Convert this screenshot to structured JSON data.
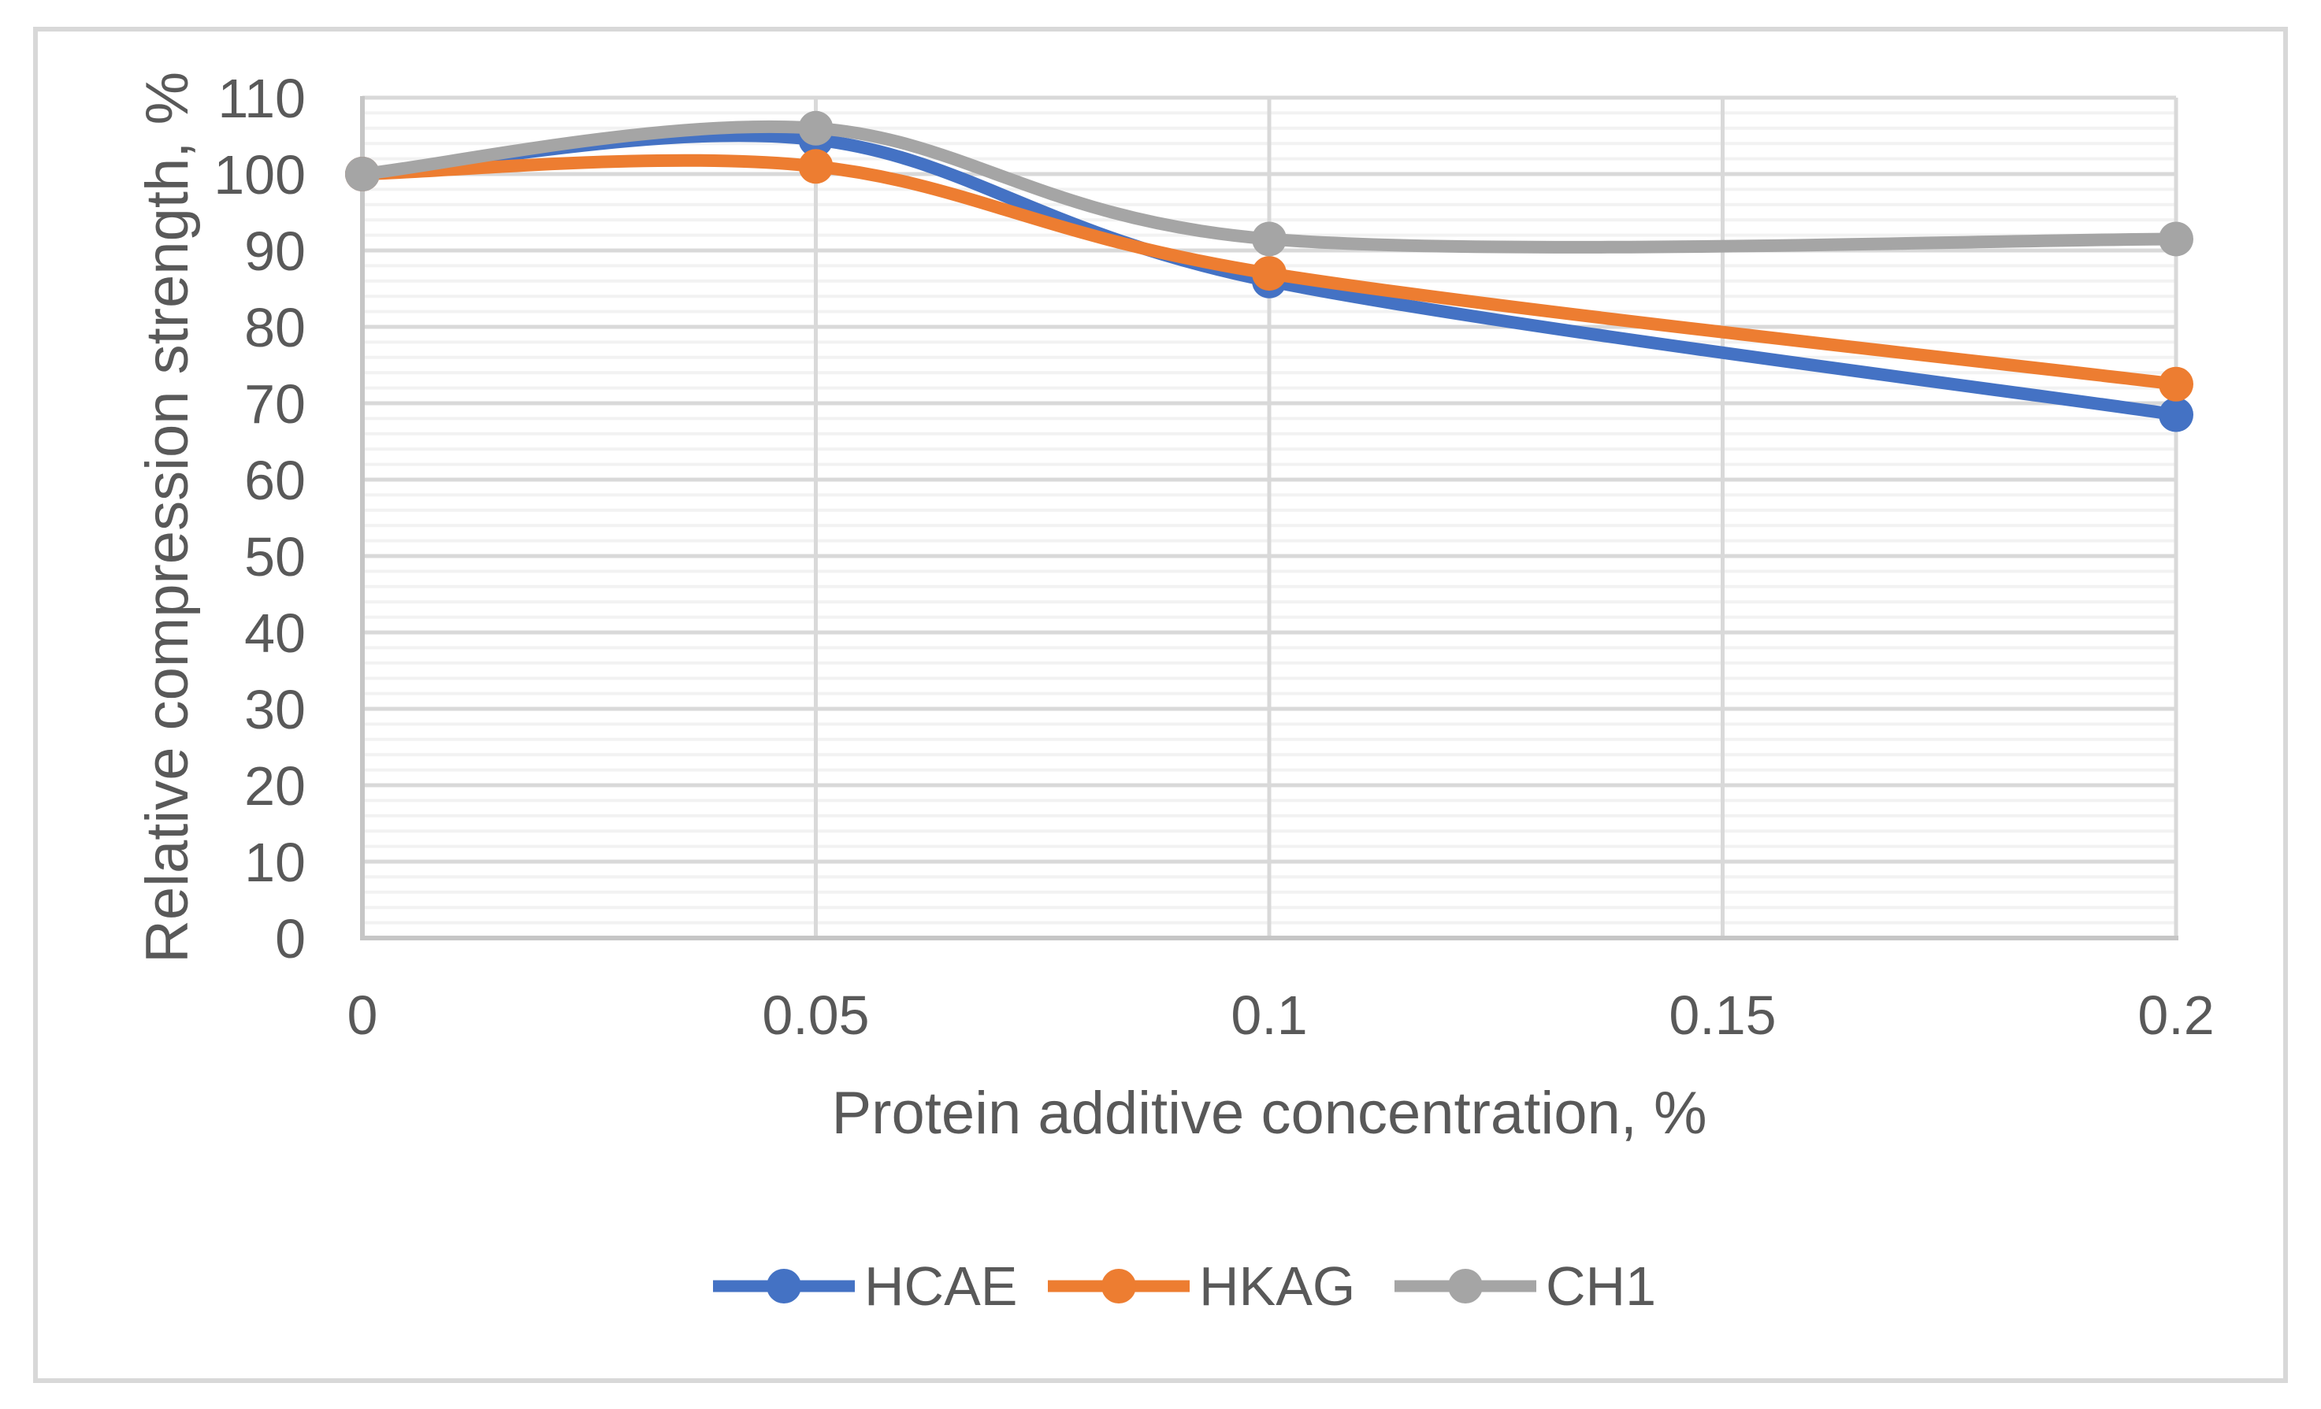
{
  "figure": {
    "background": "#ffffff",
    "border_color": "#d8d8d8"
  },
  "chart_data": {
    "type": "line",
    "title": "",
    "xlabel": "Protein additive concentration, %",
    "ylabel": "Relative compression strength, %",
    "x": [
      0,
      0.05,
      0.1,
      0.2
    ],
    "xlim": [
      0,
      0.2
    ],
    "ylim": [
      0,
      110
    ],
    "x_tick_values": [
      0,
      0.05,
      0.1,
      0.15,
      0.2
    ],
    "x_ticks": [
      "0",
      "0.05",
      "0.1",
      "0.15",
      "0.2"
    ],
    "y_tick_values": [
      0,
      10,
      20,
      30,
      40,
      50,
      60,
      70,
      80,
      90,
      100,
      110
    ],
    "y_ticks": [
      "0",
      "10",
      "20",
      "30",
      "40",
      "50",
      "60",
      "70",
      "80",
      "90",
      "100",
      "110"
    ],
    "y_minor_step": 2,
    "grid": "horizontal major+minor, vertical major",
    "smooth": true,
    "legend_position": "bottom",
    "series": [
      {
        "name": "HCAE",
        "color": "#4472C4",
        "values": [
          100,
          104.5,
          86,
          68.5
        ]
      },
      {
        "name": "HKAG",
        "color": "#ED7D31",
        "values": [
          100,
          101,
          87,
          72.5
        ]
      },
      {
        "name": "CH1",
        "color": "#A5A5A5",
        "values": [
          100,
          106,
          91.5,
          91.5
        ]
      }
    ],
    "text_color": "#595959",
    "major_grid_color": "#d9d9d9",
    "minor_grid_color": "#f2f2f2",
    "axis_line_color": "#c6c6c6"
  }
}
